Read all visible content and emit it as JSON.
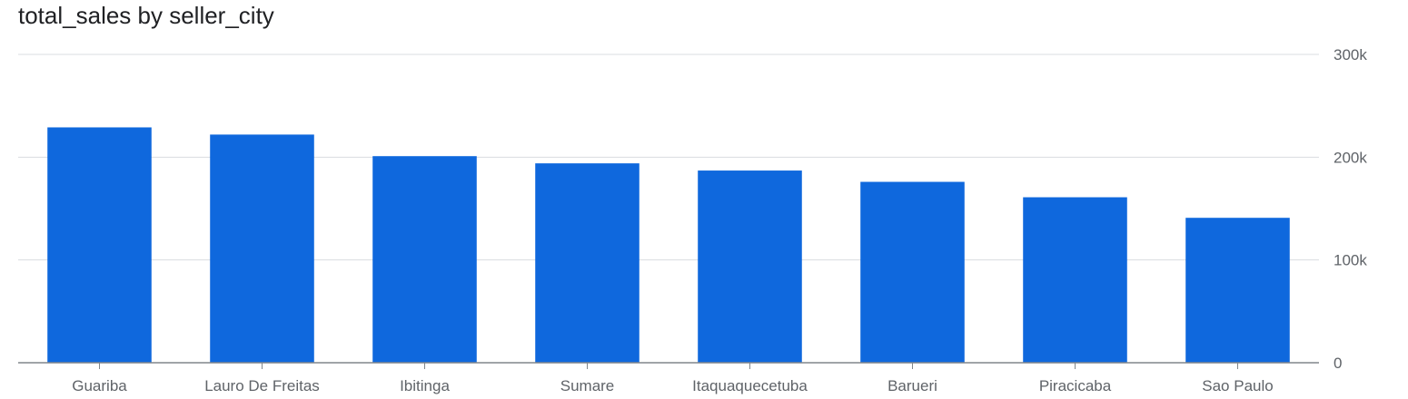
{
  "chart_data": {
    "type": "bar",
    "title": "total_sales by seller_city",
    "xlabel": "",
    "ylabel": "",
    "categories": [
      "Guariba",
      "Lauro De Freitas",
      "Ibitinga",
      "Sumare",
      "Itaquaquecetuba",
      "Barueri",
      "Piracicaba",
      "Sao Paulo"
    ],
    "values": [
      229000,
      222000,
      201000,
      194000,
      187000,
      176000,
      161000,
      141000
    ],
    "ylim": [
      0,
      300000
    ],
    "yticks": [
      0,
      100000,
      200000,
      300000
    ],
    "ytick_labels": [
      "0",
      "100k",
      "200k",
      "300k"
    ],
    "y_axis_side": "right",
    "grid": true,
    "legend": "none",
    "bar_color": "#0f68dd"
  }
}
